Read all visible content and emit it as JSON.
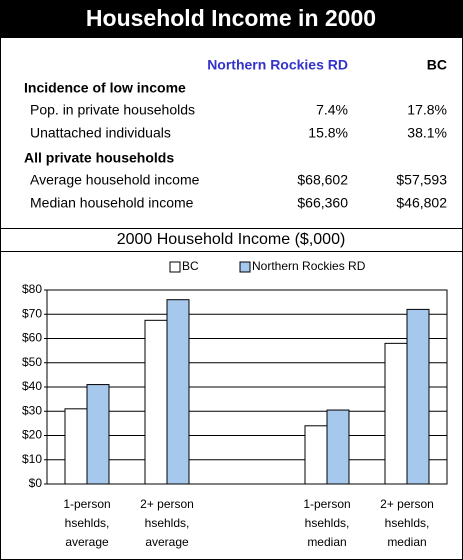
{
  "header": {
    "title": "Household Income in 2000"
  },
  "table": {
    "columns": [
      "Northern Rockies RD",
      "BC"
    ],
    "sections": [
      {
        "title": "Incidence of low income",
        "rows": [
          [
            "Pop. in private households",
            "7.4%",
            "17.8%"
          ],
          [
            "Unattached individuals",
            "15.8%",
            "38.1%"
          ]
        ]
      },
      {
        "title": "All private households",
        "rows": [
          [
            "Average household income",
            "$68,602",
            "$57,593"
          ],
          [
            "Median household income",
            "$66,360",
            "$46,802"
          ]
        ]
      }
    ]
  },
  "chart_data": {
    "type": "bar",
    "title": "2000 Household Income ($,000)",
    "categories": [
      [
        "1-person",
        "hsehlds,",
        "average"
      ],
      [
        "2+ person",
        "hsehlds,",
        "average"
      ],
      null,
      [
        "1-person",
        "hsehlds,",
        "median"
      ],
      [
        "2+ person",
        "hsehlds,",
        "median"
      ]
    ],
    "series": [
      {
        "name": "BC",
        "color": "#ffffff",
        "values": [
          31,
          67.5,
          null,
          24,
          58
        ]
      },
      {
        "name": "Northern Rockies RD",
        "color": "#a6c8ec",
        "values": [
          41,
          76,
          null,
          30.5,
          72
        ]
      }
    ],
    "ylim": [
      0,
      80
    ],
    "yticks": [
      {
        "value": 0,
        "label": "$0"
      },
      {
        "value": 10,
        "label": "$10"
      },
      {
        "value": 20,
        "label": "$20"
      },
      {
        "value": 30,
        "label": "$30"
      },
      {
        "value": 40,
        "label": "$40"
      },
      {
        "value": 50,
        "label": "$50"
      },
      {
        "value": 60,
        "label": "$60"
      },
      {
        "value": 70,
        "label": "$70"
      },
      {
        "value": 80,
        "label": "$80"
      }
    ],
    "grid": true,
    "legend": "top"
  }
}
